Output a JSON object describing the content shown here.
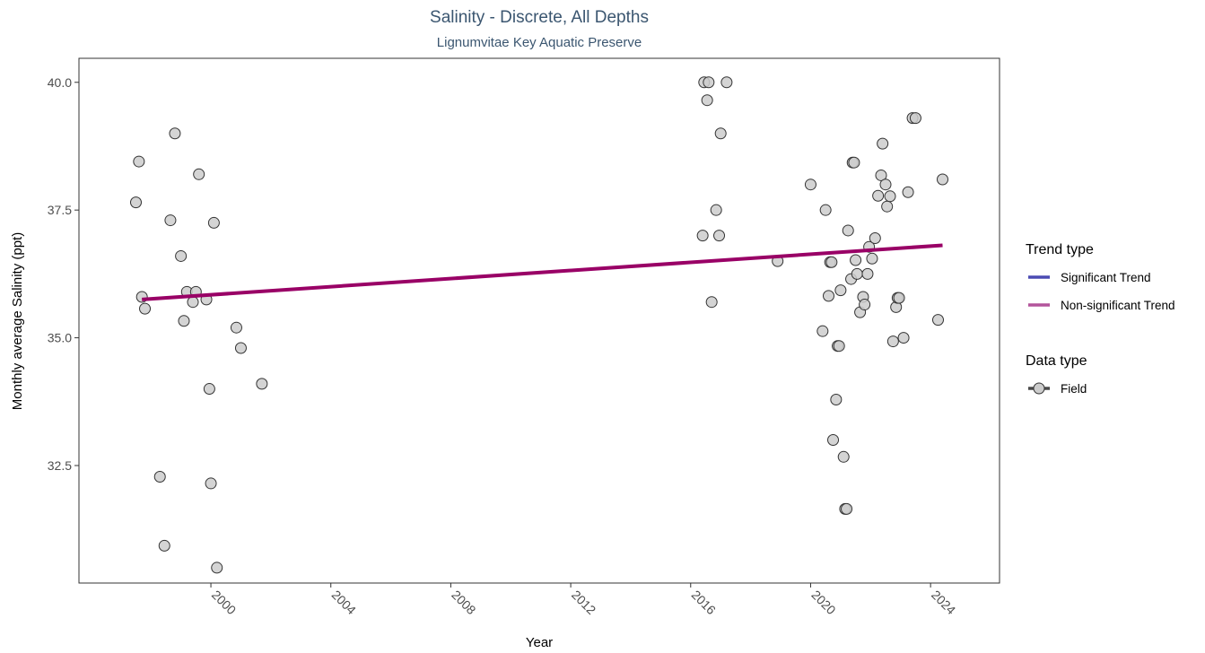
{
  "chart_data": {
    "type": "scatter",
    "title": "Salinity - Discrete, All Depths",
    "subtitle": "Lignumvitae Key Aquatic Preserve",
    "xlabel": "Year",
    "ylabel": "Monthly average Salinity (ppt)",
    "xlim": [
      1995.6,
      2026.3
    ],
    "ylim": [
      30.2,
      40.47
    ],
    "x_ticks": [
      2000,
      2004,
      2008,
      2012,
      2016,
      2020,
      2024
    ],
    "x_tick_labels": [
      "2000",
      "2004",
      "2008",
      "2012",
      "2016",
      "2020",
      "2024"
    ],
    "y_ticks": [
      32.5,
      35.0,
      37.5,
      40.0
    ],
    "y_tick_labels": [
      "32.5",
      "35.0",
      "37.5",
      "40.0"
    ],
    "grid": false,
    "legend_position": "right",
    "series": [
      {
        "name": "Field",
        "color": "#cccccc",
        "points": [
          [
            1997.5,
            37.65
          ],
          [
            1997.6,
            38.45
          ],
          [
            1997.7,
            35.8
          ],
          [
            1997.8,
            35.57
          ],
          [
            1998.3,
            32.28
          ],
          [
            1998.45,
            30.93
          ],
          [
            1998.65,
            37.3
          ],
          [
            1998.8,
            39.0
          ],
          [
            1999.0,
            36.6
          ],
          [
            1999.1,
            35.33
          ],
          [
            1999.2,
            35.9
          ],
          [
            1999.4,
            35.7
          ],
          [
            1999.5,
            35.9
          ],
          [
            1999.6,
            38.2
          ],
          [
            1999.85,
            35.75
          ],
          [
            1999.95,
            34.0
          ],
          [
            2000.0,
            32.15
          ],
          [
            2000.1,
            37.25
          ],
          [
            2000.2,
            30.5
          ],
          [
            2000.85,
            35.2
          ],
          [
            2001.0,
            34.8
          ],
          [
            2001.7,
            34.1
          ],
          [
            2016.4,
            37.0
          ],
          [
            2016.45,
            40.0
          ],
          [
            2016.55,
            39.65
          ],
          [
            2016.6,
            40.0
          ],
          [
            2016.7,
            35.7
          ],
          [
            2016.85,
            37.5
          ],
          [
            2016.95,
            37.0
          ],
          [
            2017.0,
            39.0
          ],
          [
            2017.2,
            40.0
          ],
          [
            2018.9,
            36.5
          ],
          [
            2020.0,
            38.0
          ],
          [
            2020.4,
            35.13
          ],
          [
            2020.5,
            37.5
          ],
          [
            2020.6,
            35.82
          ],
          [
            2020.65,
            36.48
          ],
          [
            2020.7,
            36.48
          ],
          [
            2020.75,
            33.0
          ],
          [
            2020.85,
            33.79
          ],
          [
            2020.9,
            34.84
          ],
          [
            2020.95,
            34.84
          ],
          [
            2021.0,
            35.93
          ],
          [
            2021.1,
            32.67
          ],
          [
            2021.15,
            31.65
          ],
          [
            2021.2,
            31.65
          ],
          [
            2021.25,
            37.1
          ],
          [
            2021.35,
            36.15
          ],
          [
            2021.4,
            38.43
          ],
          [
            2021.45,
            38.43
          ],
          [
            2021.5,
            36.52
          ],
          [
            2021.55,
            36.25
          ],
          [
            2021.65,
            35.5
          ],
          [
            2021.75,
            35.8
          ],
          [
            2021.8,
            35.65
          ],
          [
            2021.9,
            36.25
          ],
          [
            2021.95,
            36.78
          ],
          [
            2022.05,
            36.55
          ],
          [
            2022.15,
            36.95
          ],
          [
            2022.25,
            37.78
          ],
          [
            2022.35,
            38.18
          ],
          [
            2022.4,
            38.8
          ],
          [
            2022.5,
            38.0
          ],
          [
            2022.55,
            37.57
          ],
          [
            2022.65,
            37.77
          ],
          [
            2022.75,
            34.93
          ],
          [
            2022.85,
            35.6
          ],
          [
            2022.9,
            35.78
          ],
          [
            2022.95,
            35.78
          ],
          [
            2023.1,
            35.0
          ],
          [
            2023.25,
            37.85
          ],
          [
            2023.4,
            39.3
          ],
          [
            2023.5,
            39.3
          ],
          [
            2024.25,
            35.35
          ],
          [
            2024.4,
            38.1
          ]
        ]
      }
    ],
    "trend": {
      "name": "Non-significant Trend",
      "color": "#990066",
      "start": [
        1997.7,
        35.75
      ],
      "end": [
        2024.4,
        36.81
      ]
    },
    "legend": {
      "trend_title": "Trend type",
      "trend_items": [
        {
          "label": "Significant Trend",
          "color": "#4b4bb3"
        },
        {
          "label": "Non-significant Trend",
          "color": "#b3549b"
        }
      ],
      "data_title": "Data type",
      "data_items": [
        {
          "label": "Field",
          "color": "#cccccc"
        }
      ]
    }
  }
}
